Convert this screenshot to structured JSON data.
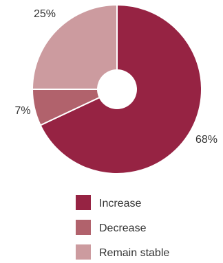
{
  "chart_data": {
    "type": "pie",
    "donut": true,
    "start_angle_deg": 0,
    "direction": "clockwise",
    "slices": [
      {
        "label": "Increase",
        "value": 68,
        "display": "68%",
        "color": "#962343"
      },
      {
        "label": "Decrease",
        "value": 7,
        "display": "7%",
        "color": "#b1626c"
      },
      {
        "label": "Remain stable",
        "value": 25,
        "display": "25%",
        "color": "#cc9b9f"
      }
    ],
    "legend": {
      "position": "bottom",
      "entries": [
        "Increase",
        "Decrease",
        "Remain stable"
      ]
    }
  }
}
